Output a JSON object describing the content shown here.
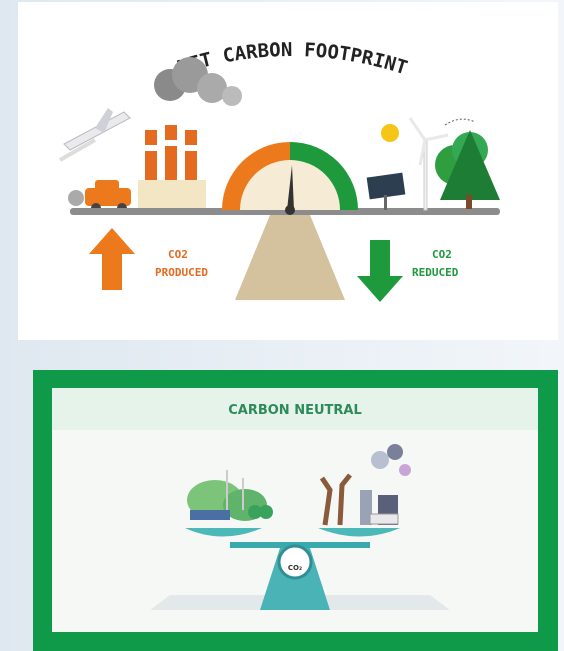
{
  "top_panel": {
    "title": "NET CARBON FOOTPRINT",
    "produced": [
      "CO2",
      "PRODUCED"
    ],
    "reduced": [
      "CO2",
      "REDUCED"
    ]
  },
  "bottom_panel": {
    "title": "CARBON NEUTRAL",
    "scale_label": "CO₂"
  }
}
